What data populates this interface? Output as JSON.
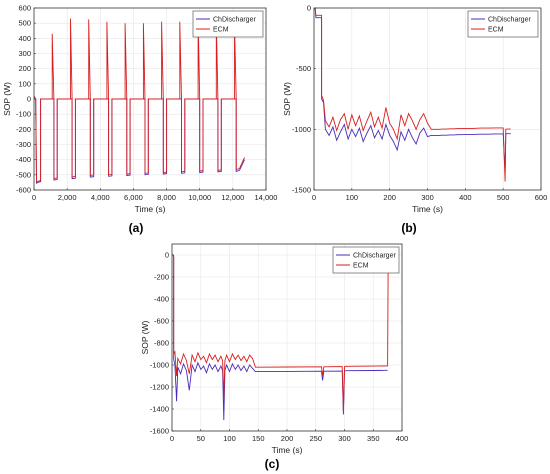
{
  "figure": {
    "panels": [
      {
        "caption": "(a)"
      },
      {
        "caption": "(b)"
      },
      {
        "caption": "(c)"
      }
    ]
  },
  "colors": {
    "chdischarger": "#4B2BB8",
    "ecm": "#D81E1E",
    "axis": "#333333",
    "grid": "#E6E6E6"
  },
  "chart_data": [
    {
      "type": "line",
      "panel": "(a)",
      "xlabel": "Time (s)",
      "ylabel": "SOP (W)",
      "xlim": [
        0,
        14000
      ],
      "ylim": [
        -600,
        600
      ],
      "xticks": [
        0,
        2000,
        4000,
        6000,
        8000,
        10000,
        12000,
        14000
      ],
      "xticklabels": [
        "0",
        "2,000",
        "4,000",
        "6,000",
        "8,000",
        "10,000",
        "12,000",
        "14,000"
      ],
      "yticks": [
        -600,
        -500,
        -400,
        -300,
        -200,
        -100,
        0,
        100,
        200,
        300,
        400,
        500,
        600
      ],
      "yticklabels": [
        "-600",
        "-500",
        "-400",
        "-300",
        "-200",
        "-100",
        "0",
        "100",
        "200",
        "300",
        "400",
        "500",
        "600"
      ],
      "grid": true,
      "legend": "top-right",
      "series": [
        {
          "name": "ChDischarger",
          "x": [
            0,
            100,
            150,
            300,
            400,
            400,
            1200,
            1200,
            1400,
            1400,
            1500,
            2300,
            2300,
            2500,
            2500,
            2600,
            3400,
            3400,
            3600,
            3600,
            3700,
            4500,
            4500,
            4700,
            4700,
            4800,
            5600,
            5600,
            5800,
            5800,
            5900,
            6700,
            6700,
            6900,
            6900,
            7000,
            7800,
            7800,
            8000,
            8000,
            8100,
            8900,
            8900,
            9100,
            9100,
            9200,
            10000,
            10000,
            10200,
            10200,
            10300,
            11100,
            11100,
            11300,
            11300,
            11400,
            12200,
            12200,
            12400,
            12700
          ],
          "y": [
            0,
            0,
            -555,
            -548,
            -545,
            0,
            0,
            -535,
            -530,
            0,
            0,
            0,
            -525,
            -522,
            0,
            0,
            0,
            -515,
            -512,
            0,
            0,
            0,
            -510,
            -507,
            0,
            0,
            0,
            -505,
            -502,
            0,
            0,
            0,
            -500,
            -497,
            0,
            0,
            0,
            -495,
            -492,
            0,
            0,
            0,
            -490,
            -487,
            0,
            0,
            0,
            -485,
            -482,
            0,
            0,
            0,
            -480,
            -477,
            0,
            0,
            0,
            -478,
            -470,
            -400
          ]
        },
        {
          "name": "ECM",
          "x": [
            0,
            100,
            150,
            300,
            400,
            400,
            1100,
            1100,
            1200,
            1200,
            1400,
            1400,
            1500,
            2200,
            2200,
            2300,
            2300,
            2500,
            2500,
            2600,
            3300,
            3300,
            3400,
            3400,
            3600,
            3600,
            3700,
            4400,
            4400,
            4500,
            4500,
            4700,
            4700,
            4800,
            5500,
            5500,
            5600,
            5600,
            5800,
            5800,
            5900,
            6600,
            6600,
            6700,
            6700,
            6900,
            6900,
            7000,
            7700,
            7700,
            7800,
            7800,
            8000,
            8000,
            8100,
            8800,
            8800,
            8900,
            8900,
            9100,
            9100,
            9200,
            9900,
            9900,
            10000,
            10000,
            10200,
            10200,
            10300,
            11000,
            11000,
            11100,
            11100,
            11300,
            11300,
            11400,
            12100,
            12100,
            12200,
            12200,
            12400,
            12700
          ],
          "y": [
            20,
            0,
            -545,
            -540,
            -538,
            0,
            0,
            430,
            0,
            -525,
            -520,
            0,
            0,
            0,
            530,
            0,
            -515,
            -510,
            0,
            0,
            0,
            525,
            0,
            -505,
            -500,
            0,
            0,
            0,
            510,
            0,
            -500,
            -497,
            0,
            0,
            0,
            500,
            0,
            -495,
            -492,
            0,
            0,
            0,
            500,
            0,
            -490,
            -487,
            0,
            0,
            0,
            510,
            0,
            -485,
            -482,
            0,
            0,
            0,
            510,
            0,
            -480,
            -477,
            0,
            0,
            0,
            520,
            0,
            -475,
            -472,
            0,
            0,
            0,
            520,
            0,
            -470,
            -467,
            0,
            0,
            0,
            500,
            0,
            -465,
            -458,
            -385
          ]
        }
      ]
    },
    {
      "type": "line",
      "panel": "(b)",
      "xlabel": "Time (s)",
      "ylabel": "SOP (W)",
      "xlim": [
        0,
        600
      ],
      "ylim": [
        -1500,
        0
      ],
      "xticks": [
        0,
        100,
        200,
        300,
        400,
        500,
        600
      ],
      "xticklabels": [
        "0",
        "100",
        "200",
        "300",
        "400",
        "500",
        "600"
      ],
      "yticks": [
        -1500,
        -1000,
        -500,
        0
      ],
      "yticklabels": [
        "-1500",
        "-1000",
        "-500",
        "0"
      ],
      "grid": true,
      "legend": "top-right",
      "series": [
        {
          "name": "ChDischarger",
          "x": [
            0,
            3,
            5,
            20,
            20,
            25,
            30,
            40,
            50,
            60,
            70,
            80,
            90,
            100,
            110,
            120,
            130,
            140,
            150,
            160,
            170,
            180,
            190,
            200,
            210,
            220,
            230,
            240,
            250,
            260,
            270,
            280,
            290,
            300,
            310,
            320,
            330,
            340,
            350,
            360,
            370,
            380,
            390,
            400,
            420,
            440,
            460,
            480,
            500,
            505,
            507,
            510,
            520
          ],
          "y": [
            0,
            0,
            -80,
            -80,
            -750,
            -780,
            -1000,
            -1050,
            -980,
            -1090,
            -1020,
            -960,
            -1080,
            -1000,
            -1060,
            -990,
            -1100,
            -1030,
            -970,
            -1070,
            -1010,
            -1080,
            -960,
            -1050,
            -1100,
            -1170,
            -1020,
            -1090,
            -1000,
            -1070,
            -1120,
            -1030,
            -990,
            -1060,
            -1050,
            -1050,
            -1050,
            -1048,
            -1048,
            -1046,
            -1046,
            -1044,
            -1044,
            -1042,
            -1042,
            -1040,
            -1040,
            -1038,
            -1038,
            -1350,
            -1038,
            -1036,
            -1036
          ]
        },
        {
          "name": "ECM",
          "x": [
            0,
            3,
            5,
            20,
            20,
            25,
            30,
            40,
            50,
            60,
            70,
            80,
            90,
            100,
            110,
            120,
            130,
            140,
            150,
            160,
            170,
            180,
            190,
            200,
            210,
            220,
            230,
            240,
            250,
            260,
            270,
            280,
            290,
            300,
            310,
            320,
            330,
            340,
            350,
            360,
            370,
            380,
            390,
            400,
            420,
            440,
            460,
            480,
            500,
            505,
            507,
            510,
            520
          ],
          "y": [
            0,
            0,
            -60,
            -60,
            -720,
            -760,
            -930,
            -980,
            -900,
            -1010,
            -920,
            -870,
            -1000,
            -880,
            -970,
            -890,
            -1010,
            -930,
            -860,
            -980,
            -900,
            -990,
            -820,
            -950,
            -1000,
            -1080,
            -880,
            -970,
            -870,
            -930,
            -1000,
            -920,
            -870,
            -950,
            -1000,
            -1000,
            -1000,
            -998,
            -998,
            -996,
            -996,
            -994,
            -994,
            -992,
            -992,
            -990,
            -990,
            -988,
            -988,
            -1430,
            -1000,
            -998,
            -998
          ]
        }
      ]
    },
    {
      "type": "line",
      "panel": "(c)",
      "xlabel": "Time (s)",
      "ylabel": "SOP (W)",
      "xlim": [
        0,
        400
      ],
      "ylim": [
        -1600,
        100
      ],
      "xticks": [
        0,
        50,
        100,
        150,
        200,
        250,
        300,
        350,
        400
      ],
      "xticklabels": [
        "0",
        "50",
        "100",
        "150",
        "200",
        "250",
        "300",
        "350",
        "400"
      ],
      "yticks": [
        -1600,
        -1400,
        -1200,
        -1000,
        -800,
        -600,
        -400,
        -200,
        0
      ],
      "yticklabels": [
        "-1600",
        "-1400",
        "-1200",
        "-1000",
        "-800",
        "-600",
        "-400",
        "-200",
        "0"
      ],
      "grid": true,
      "legend": "top-right",
      "series": [
        {
          "name": "ChDischarger",
          "x": [
            0,
            2,
            3,
            3,
            5,
            8,
            10,
            15,
            20,
            25,
            30,
            35,
            40,
            45,
            50,
            55,
            60,
            65,
            70,
            75,
            80,
            85,
            88,
            90,
            92,
            95,
            100,
            105,
            110,
            115,
            120,
            125,
            130,
            135,
            140,
            145,
            150,
            200,
            260,
            262,
            264,
            296,
            298,
            300,
            302,
            350,
            374,
            375
          ],
          "y": [
            0,
            0,
            -20,
            -950,
            -1000,
            -1330,
            -1020,
            -1080,
            -990,
            -1050,
            -1230,
            -1000,
            -1060,
            -980,
            -1040,
            -1010,
            -1070,
            -990,
            -1040,
            -1000,
            -1060,
            -1010,
            -1050,
            -1500,
            -1050,
            -1000,
            -1060,
            -990,
            -1040,
            -1000,
            -1050,
            -1010,
            -1060,
            -1000,
            -1030,
            -1060,
            -1060,
            -1058,
            -1056,
            -1140,
            -1056,
            -1055,
            -1450,
            -1055,
            -1052,
            -1050,
            -1048,
            -1048
          ]
        },
        {
          "name": "ECM",
          "x": [
            0,
            2,
            3,
            3,
            5,
            8,
            10,
            15,
            20,
            25,
            30,
            35,
            40,
            45,
            50,
            55,
            60,
            65,
            70,
            75,
            80,
            85,
            88,
            90,
            92,
            95,
            100,
            105,
            110,
            115,
            120,
            125,
            130,
            135,
            140,
            145,
            150,
            200,
            260,
            262,
            264,
            296,
            298,
            300,
            302,
            350,
            374,
            375,
            376
          ],
          "y": [
            0,
            0,
            -10,
            -900,
            -880,
            -1100,
            -940,
            -990,
            -900,
            -960,
            -1080,
            -910,
            -970,
            -890,
            -950,
            -920,
            -980,
            -900,
            -950,
            -910,
            -970,
            -920,
            -960,
            -1300,
            -960,
            -910,
            -970,
            -900,
            -950,
            -910,
            -960,
            -920,
            -970,
            -910,
            -940,
            -1020,
            -1020,
            -1018,
            -1016,
            -1100,
            -1016,
            -1015,
            -1420,
            -1015,
            -1012,
            -1010,
            -1008,
            -1008,
            0
          ]
        }
      ]
    }
  ]
}
